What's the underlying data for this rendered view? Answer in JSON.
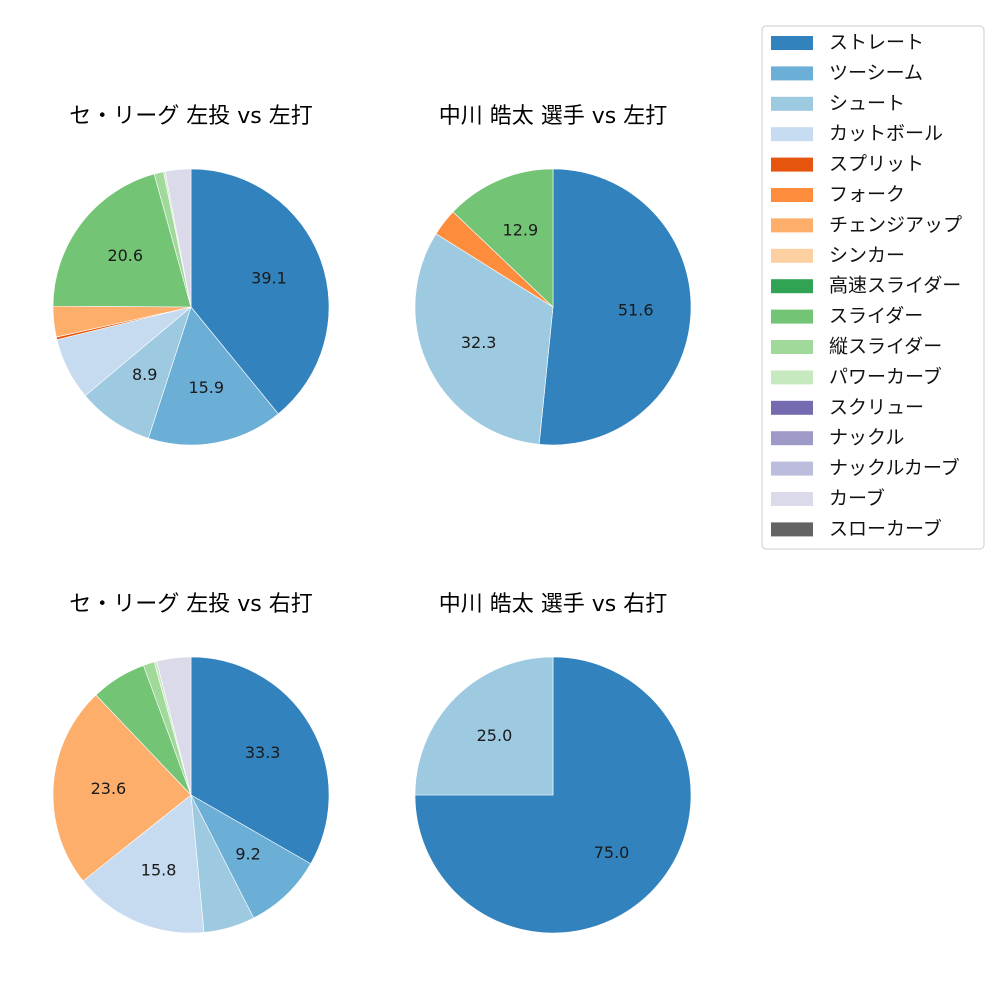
{
  "legend": {
    "entries": [
      {
        "label": "ストレート",
        "color": "#3182bd"
      },
      {
        "label": "ツーシーム",
        "color": "#6baed6"
      },
      {
        "label": "シュート",
        "color": "#9ecae1"
      },
      {
        "label": "カットボール",
        "color": "#c6dbef"
      },
      {
        "label": "スプリット",
        "color": "#e6550d"
      },
      {
        "label": "フォーク",
        "color": "#fd8d3c"
      },
      {
        "label": "チェンジアップ",
        "color": "#fdae6b"
      },
      {
        "label": "シンカー",
        "color": "#fdd0a2"
      },
      {
        "label": "高速スライダー",
        "color": "#31a354"
      },
      {
        "label": "スライダー",
        "color": "#74c476"
      },
      {
        "label": "縦スライダー",
        "color": "#a1d99b"
      },
      {
        "label": "パワーカーブ",
        "color": "#c7e9c0"
      },
      {
        "label": "スクリュー",
        "color": "#756bb1"
      },
      {
        "label": "ナックル",
        "color": "#9e9ac8"
      },
      {
        "label": "ナックルカーブ",
        "color": "#bcbddc"
      },
      {
        "label": "カーブ",
        "color": "#dadaeb"
      },
      {
        "label": "スローカーブ",
        "color": "#636363"
      }
    ]
  },
  "chart_data": [
    {
      "type": "pie",
      "title": "セ・リーグ 左投 vs 左打",
      "slices": [
        {
          "category": "ストレート",
          "value": 39.1,
          "label": "39.1"
        },
        {
          "category": "ツーシーム",
          "value": 15.9,
          "label": "15.9"
        },
        {
          "category": "シュート",
          "value": 8.9,
          "label": "8.9"
        },
        {
          "category": "カットボール",
          "value": 7.3,
          "label": ""
        },
        {
          "category": "スプリット",
          "value": 0.3,
          "label": ""
        },
        {
          "category": "チェンジアップ",
          "value": 3.6,
          "label": ""
        },
        {
          "category": "スライダー",
          "value": 20.6,
          "label": "20.6"
        },
        {
          "category": "縦スライダー",
          "value": 1.1,
          "label": ""
        },
        {
          "category": "パワーカーブ",
          "value": 0.2,
          "label": ""
        },
        {
          "category": "カーブ",
          "value": 3.0,
          "label": ""
        }
      ]
    },
    {
      "type": "pie",
      "title": "中川 皓太 選手 vs 左打",
      "slices": [
        {
          "category": "ストレート",
          "value": 51.6,
          "label": "51.6"
        },
        {
          "category": "シュート",
          "value": 32.3,
          "label": "32.3"
        },
        {
          "category": "フォーク",
          "value": 3.2,
          "label": ""
        },
        {
          "category": "スライダー",
          "value": 12.9,
          "label": "12.9"
        }
      ]
    },
    {
      "type": "pie",
      "title": "セ・リーグ 左投 vs 右打",
      "slices": [
        {
          "category": "ストレート",
          "value": 33.3,
          "label": "33.3"
        },
        {
          "category": "ツーシーム",
          "value": 9.2,
          "label": "9.2"
        },
        {
          "category": "シュート",
          "value": 6.0,
          "label": ""
        },
        {
          "category": "カットボール",
          "value": 15.8,
          "label": "15.8"
        },
        {
          "category": "チェンジアップ",
          "value": 23.6,
          "label": "23.6"
        },
        {
          "category": "スライダー",
          "value": 6.5,
          "label": ""
        },
        {
          "category": "縦スライダー",
          "value": 1.3,
          "label": ""
        },
        {
          "category": "パワーカーブ",
          "value": 0.3,
          "label": ""
        },
        {
          "category": "カーブ",
          "value": 4.0,
          "label": ""
        }
      ]
    },
    {
      "type": "pie",
      "title": "中川 皓太 選手 vs 右打",
      "slices": [
        {
          "category": "ストレート",
          "value": 75.0,
          "label": "75.0"
        },
        {
          "category": "シュート",
          "value": 25.0,
          "label": "25.0"
        }
      ]
    }
  ]
}
